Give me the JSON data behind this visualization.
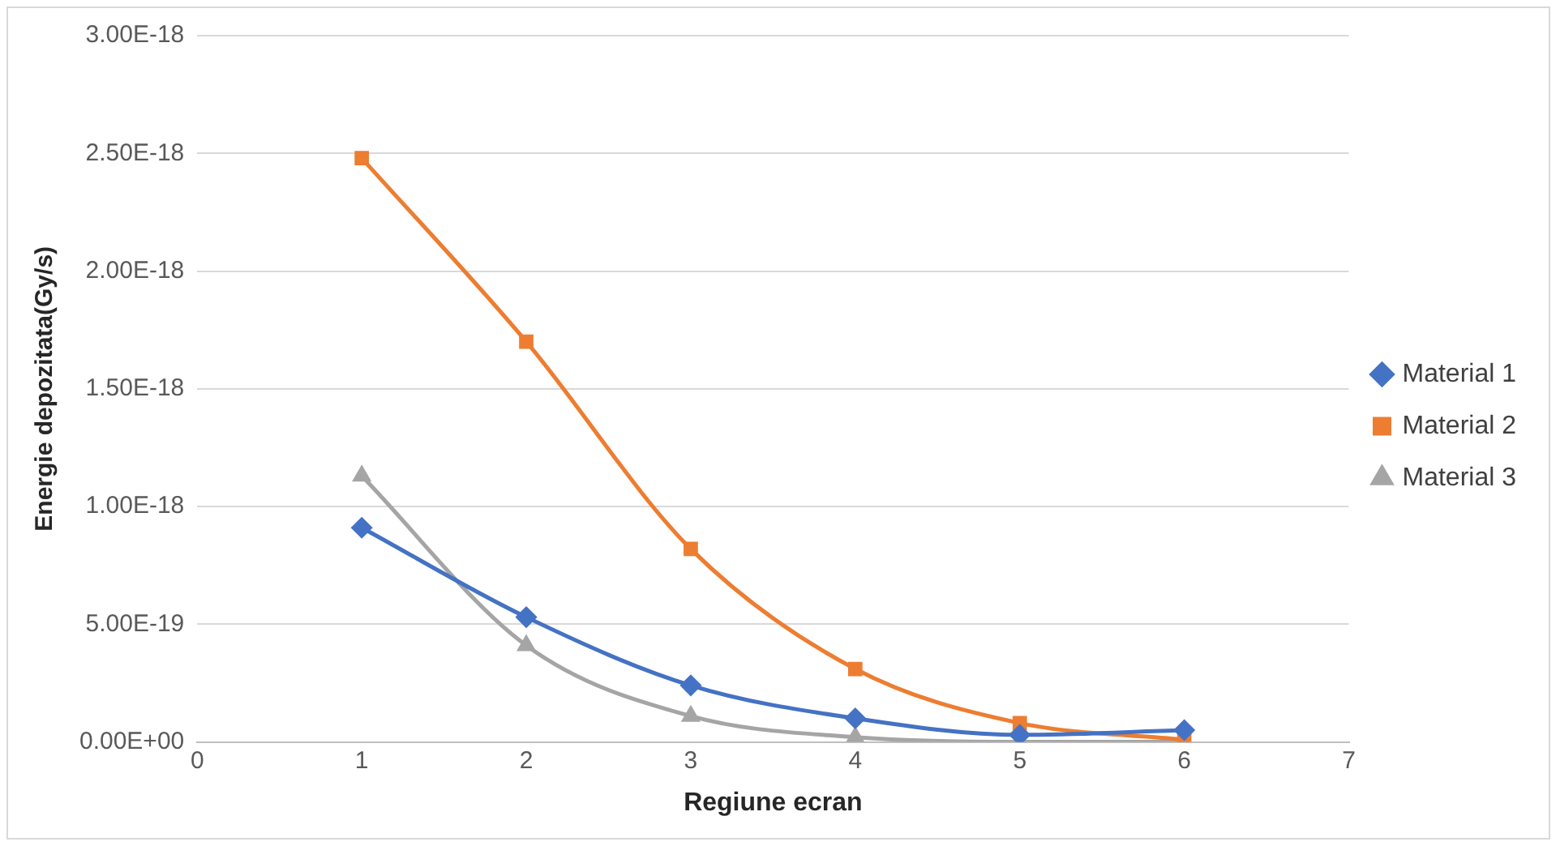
{
  "chart_data": {
    "type": "line",
    "xlabel": "Regiune ecran",
    "ylabel": "Energie depozitata(Gy/s)",
    "x": [
      1,
      2,
      3,
      4,
      5,
      6
    ],
    "series": [
      {
        "name": "Material 1",
        "color": "#4472c4",
        "marker": "diamond",
        "values": [
          9.1e-19,
          5.3e-19,
          2.4e-19,
          1e-19,
          3e-20,
          5e-20
        ]
      },
      {
        "name": "Material 2",
        "color": "#ed7d31",
        "marker": "square",
        "values": [
          2.48e-18,
          1.7e-18,
          8.2e-19,
          3.1e-19,
          8e-20,
          1e-20
        ]
      },
      {
        "name": "Material 3",
        "color": "#a5a5a5",
        "marker": "triangle",
        "values": [
          1.13e-18,
          4.1e-19,
          1.1e-19,
          2e-20,
          0,
          0
        ]
      }
    ],
    "xlim": [
      0,
      7
    ],
    "xticks": [
      0,
      1,
      2,
      3,
      4,
      5,
      6,
      7
    ],
    "ylim": [
      0,
      3e-18
    ],
    "yticks": [
      {
        "value": 0,
        "label": "0.00E+00"
      },
      {
        "value": 5e-19,
        "label": "5.00E-19"
      },
      {
        "value": 1e-18,
        "label": "1.00E-18"
      },
      {
        "value": 1.5e-18,
        "label": "1.50E-18"
      },
      {
        "value": 2e-18,
        "label": "2.00E-18"
      },
      {
        "value": 2.5e-18,
        "label": "2.50E-18"
      },
      {
        "value": 3e-18,
        "label": "3.00E-18"
      }
    ],
    "grid": "y",
    "legend": "right",
    "line_style": "solid"
  }
}
